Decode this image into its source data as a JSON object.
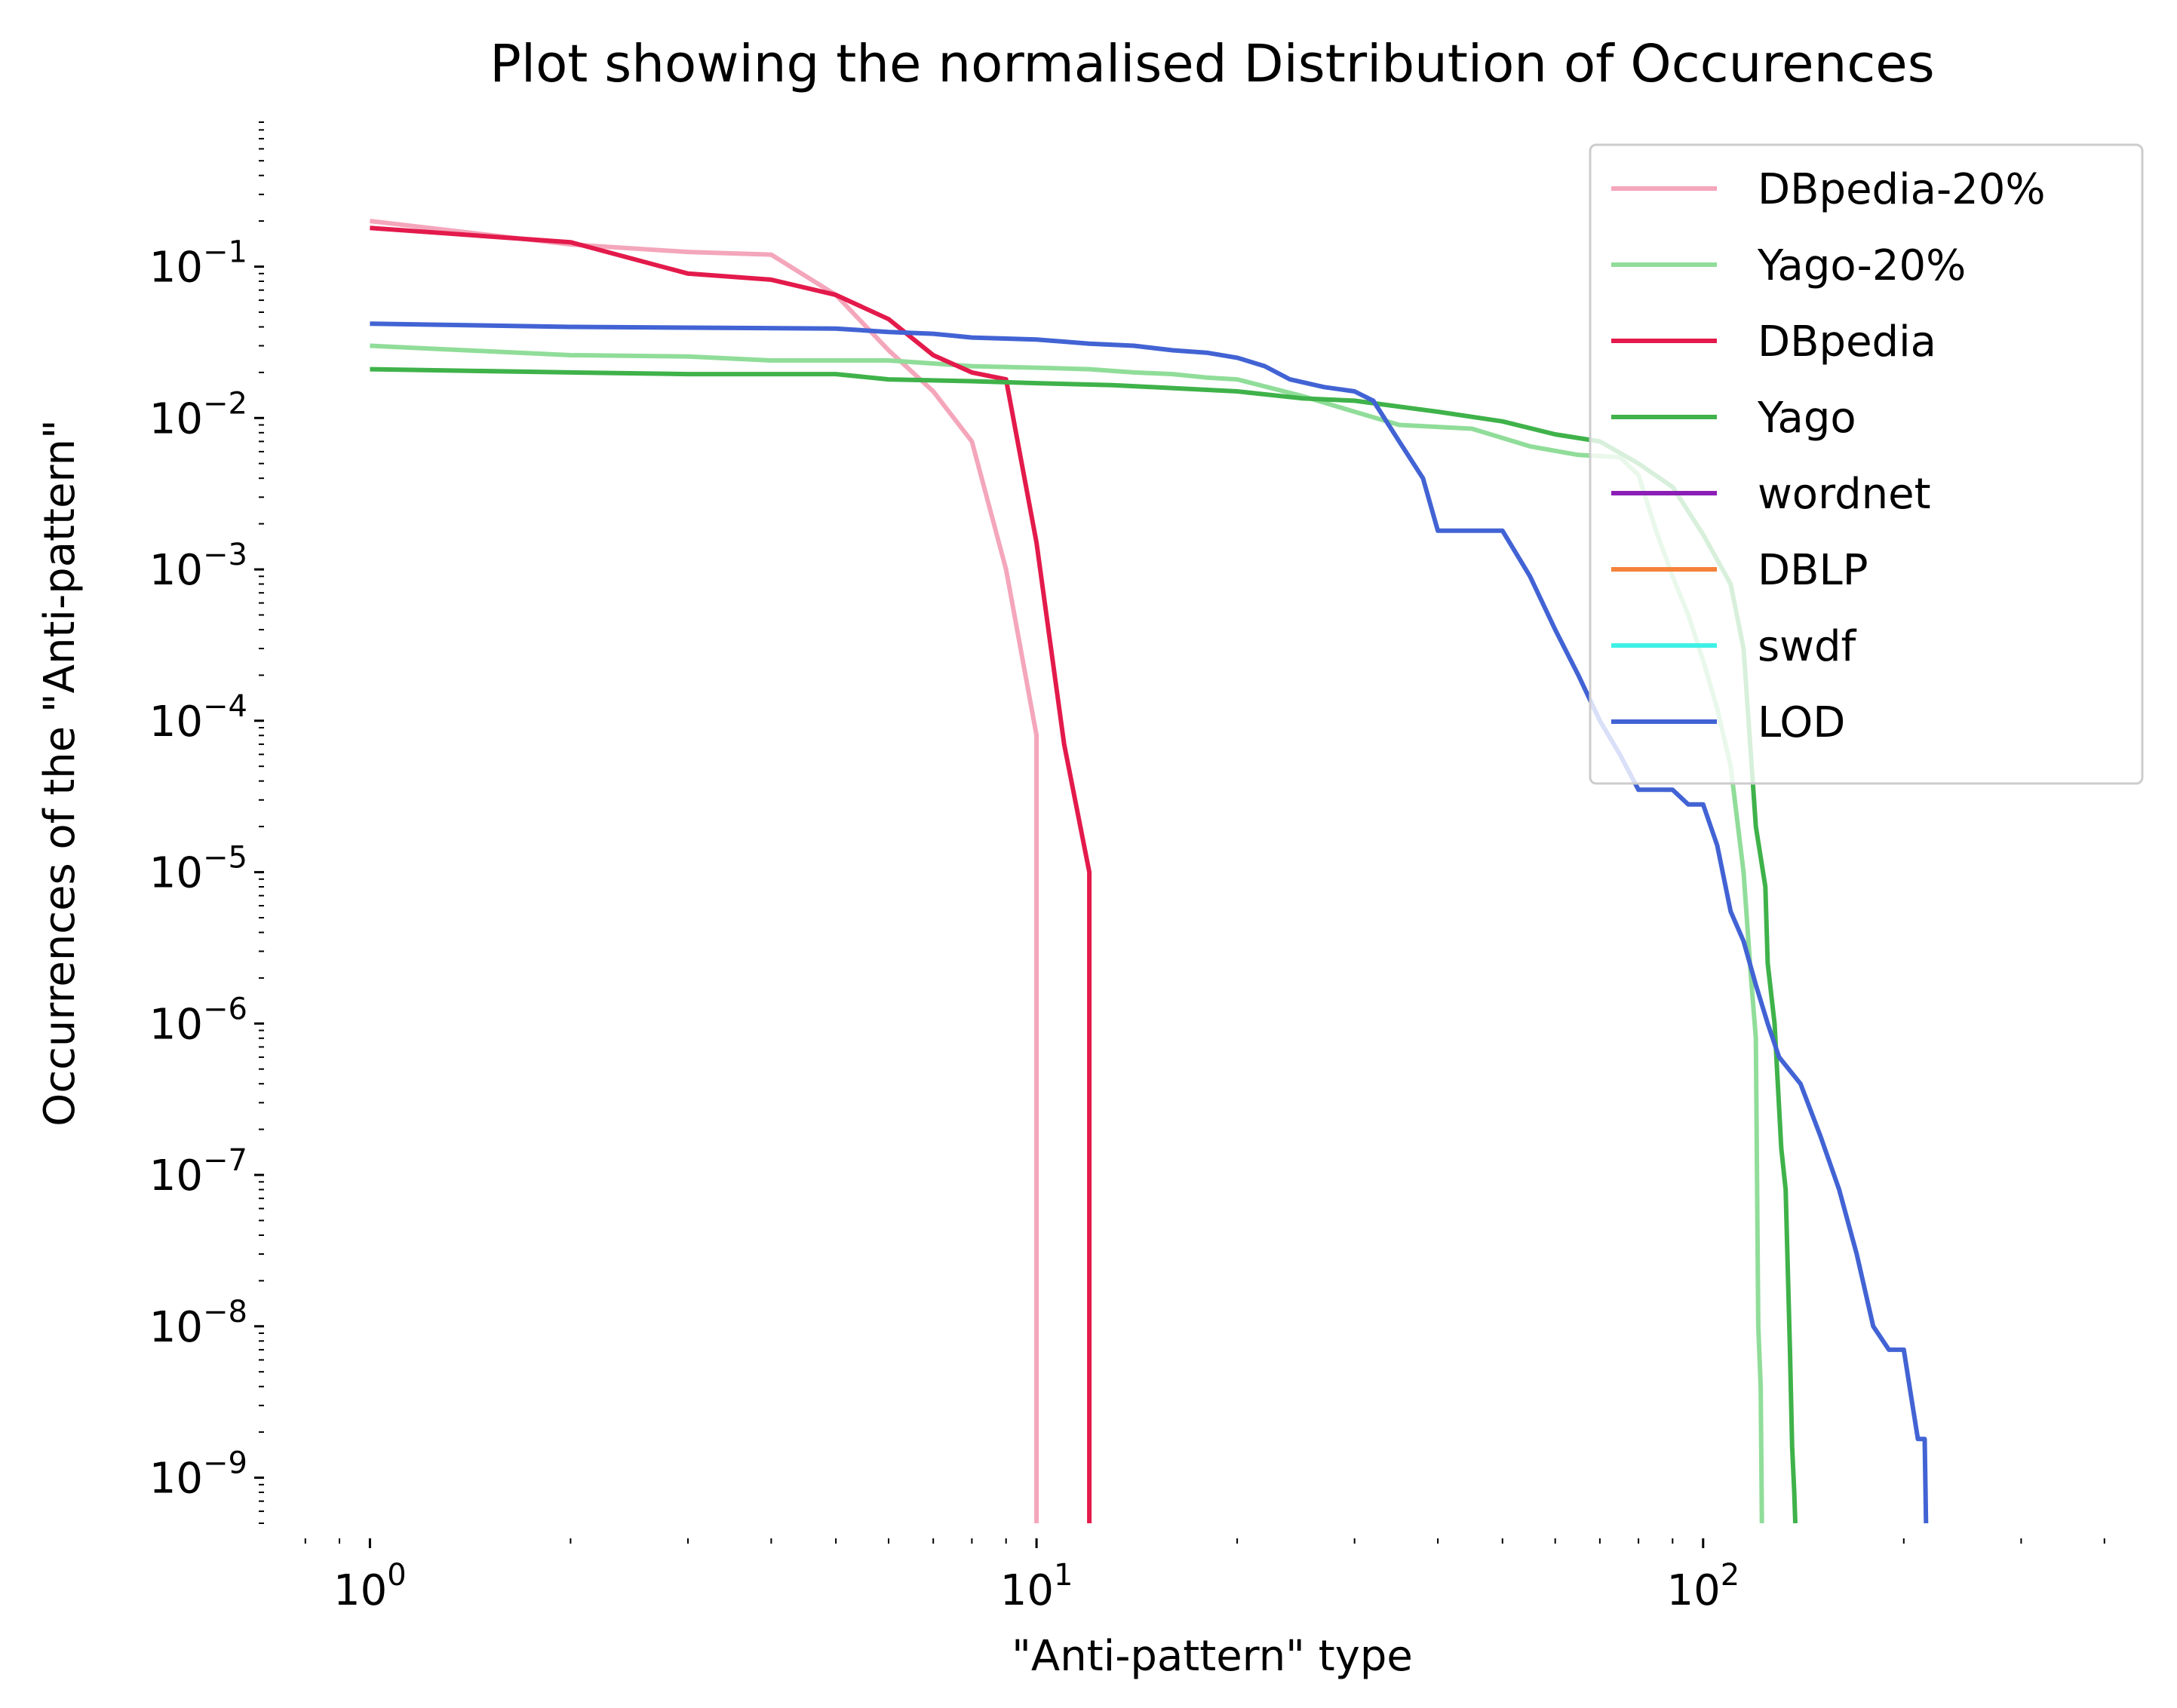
{
  "chart_data": {
    "type": "line",
    "title": "Plot showing the normalised Distribution of Occurences",
    "xlabel": "\"Anti-pattern\" type",
    "ylabel": "Occurrences of the \"Anti-pattern\"",
    "xscale": "log",
    "yscale": "log",
    "xlim": [
      0.75,
      450
    ],
    "ylim": [
      5e-10,
      0.9
    ],
    "grid": false,
    "legend_position": "top-right",
    "x_ticks": [
      {
        "value": 1,
        "base": "10",
        "exp": "0"
      },
      {
        "value": 10,
        "base": "10",
        "exp": "1"
      },
      {
        "value": 100,
        "base": "10",
        "exp": "2"
      }
    ],
    "y_ticks": [
      {
        "value": 0.1,
        "base": "10",
        "exp": "−1"
      },
      {
        "value": 0.01,
        "base": "10",
        "exp": "−2"
      },
      {
        "value": 0.001,
        "base": "10",
        "exp": "−3"
      },
      {
        "value": 0.0001,
        "base": "10",
        "exp": "−4"
      },
      {
        "value": 1e-05,
        "base": "10",
        "exp": "−5"
      },
      {
        "value": 1e-06,
        "base": "10",
        "exp": "−6"
      },
      {
        "value": 1e-07,
        "base": "10",
        "exp": "−7"
      },
      {
        "value": 1e-08,
        "base": "10",
        "exp": "−8"
      },
      {
        "value": 1e-09,
        "base": "10",
        "exp": "−9"
      }
    ],
    "series": [
      {
        "name": "DBpedia-20%",
        "color": "#f4a6bb",
        "points": [
          [
            1,
            0.2
          ],
          [
            2,
            0.14
          ],
          [
            3,
            0.125
          ],
          [
            4,
            0.12
          ],
          [
            5,
            0.065
          ],
          [
            6,
            0.028
          ],
          [
            7,
            0.015
          ],
          [
            8,
            0.007
          ],
          [
            9,
            0.001
          ],
          [
            10,
            8e-05
          ],
          [
            10,
            5e-10
          ]
        ]
      },
      {
        "name": "Yago-20%",
        "color": "#90dd99",
        "points": [
          [
            1,
            0.03
          ],
          [
            2,
            0.026
          ],
          [
            3,
            0.0255
          ],
          [
            4,
            0.024
          ],
          [
            6,
            0.024
          ],
          [
            8,
            0.022
          ],
          [
            10,
            0.0215
          ],
          [
            12,
            0.021
          ],
          [
            14,
            0.02
          ],
          [
            16,
            0.0195
          ],
          [
            18,
            0.0185
          ],
          [
            20,
            0.018
          ],
          [
            25,
            0.014
          ],
          [
            30,
            0.011
          ],
          [
            35,
            0.009
          ],
          [
            45,
            0.0085
          ],
          [
            55,
            0.0065
          ],
          [
            65,
            0.0057
          ],
          [
            75,
            0.0055
          ],
          [
            80,
            0.0042
          ],
          [
            85,
            0.0018
          ],
          [
            90,
            0.0009
          ],
          [
            95,
            0.0005
          ],
          [
            100,
            0.00025
          ],
          [
            105,
            0.00012
          ],
          [
            110,
            5e-05
          ],
          [
            115,
            1e-05
          ],
          [
            118,
            2e-06
          ],
          [
            120,
            8e-07
          ],
          [
            121,
            1e-08
          ],
          [
            122,
            4e-09
          ],
          [
            122.5,
            5e-10
          ]
        ]
      },
      {
        "name": "DBpedia",
        "color": "#e31a4b",
        "points": [
          [
            1,
            0.18
          ],
          [
            2,
            0.145
          ],
          [
            3,
            0.09
          ],
          [
            4,
            0.082
          ],
          [
            5,
            0.065
          ],
          [
            6,
            0.045
          ],
          [
            7,
            0.026
          ],
          [
            8,
            0.02
          ],
          [
            9,
            0.018
          ],
          [
            10,
            0.0015
          ],
          [
            11,
            7e-05
          ],
          [
            12,
            1e-05
          ],
          [
            12,
            5e-10
          ]
        ]
      },
      {
        "name": "Yago",
        "color": "#3fb24a",
        "points": [
          [
            1,
            0.021
          ],
          [
            2,
            0.02
          ],
          [
            3,
            0.0195
          ],
          [
            5,
            0.0195
          ],
          [
            6,
            0.018
          ],
          [
            8,
            0.0175
          ],
          [
            10,
            0.017
          ],
          [
            13,
            0.0165
          ],
          [
            20,
            0.015
          ],
          [
            25,
            0.0135
          ],
          [
            30,
            0.013
          ],
          [
            40,
            0.011
          ],
          [
            50,
            0.0095
          ],
          [
            60,
            0.0078
          ],
          [
            70,
            0.007
          ],
          [
            80,
            0.005
          ],
          [
            90,
            0.0035
          ],
          [
            100,
            0.0017
          ],
          [
            110,
            0.0008
          ],
          [
            115,
            0.0003
          ],
          [
            120,
            2e-05
          ],
          [
            124,
            8e-06
          ],
          [
            125,
            2.5e-06
          ],
          [
            128,
            1e-06
          ],
          [
            131,
            1.5e-07
          ],
          [
            133,
            8e-08
          ],
          [
            135,
            7e-09
          ],
          [
            136,
            1.6e-09
          ],
          [
            137,
            8e-10
          ],
          [
            137.5,
            5e-10
          ]
        ]
      },
      {
        "name": "wordnet",
        "color": "#8b1fb5",
        "points": []
      },
      {
        "name": "DBLP",
        "color": "#f5813a",
        "points": []
      },
      {
        "name": "swdf",
        "color": "#3ff0e6",
        "points": []
      },
      {
        "name": "LOD",
        "color": "#4263d4",
        "points": [
          [
            1,
            0.042
          ],
          [
            2,
            0.04
          ],
          [
            3,
            0.0395
          ],
          [
            5,
            0.039
          ],
          [
            6,
            0.037
          ],
          [
            7,
            0.036
          ],
          [
            8,
            0.034
          ],
          [
            10,
            0.033
          ],
          [
            12,
            0.031
          ],
          [
            14,
            0.03
          ],
          [
            16,
            0.028
          ],
          [
            18,
            0.027
          ],
          [
            20,
            0.025
          ],
          [
            22,
            0.022
          ],
          [
            24,
            0.018
          ],
          [
            27,
            0.016
          ],
          [
            30,
            0.015
          ],
          [
            32,
            0.013
          ],
          [
            35,
            0.007
          ],
          [
            38,
            0.004
          ],
          [
            40,
            0.0018
          ],
          [
            50,
            0.0018
          ],
          [
            55,
            0.0009
          ],
          [
            60,
            0.0004
          ],
          [
            65,
            0.0002
          ],
          [
            70,
            0.0001
          ],
          [
            75,
            6e-05
          ],
          [
            80,
            3.5e-05
          ],
          [
            90,
            3.5e-05
          ],
          [
            95,
            2.8e-05
          ],
          [
            100,
            2.8e-05
          ],
          [
            105,
            1.5e-05
          ],
          [
            110,
            5.5e-06
          ],
          [
            115,
            3.5e-06
          ],
          [
            120,
            1.8e-06
          ],
          [
            125,
            1e-06
          ],
          [
            130,
            6e-07
          ],
          [
            140,
            4e-07
          ],
          [
            150,
            1.8e-07
          ],
          [
            160,
            8e-08
          ],
          [
            170,
            3e-08
          ],
          [
            180,
            1e-08
          ],
          [
            190,
            7e-09
          ],
          [
            200,
            7e-09
          ],
          [
            205,
            3.5e-09
          ],
          [
            210,
            1.8e-09
          ],
          [
            215,
            1.8e-09
          ],
          [
            216,
            5e-10
          ]
        ]
      }
    ]
  }
}
